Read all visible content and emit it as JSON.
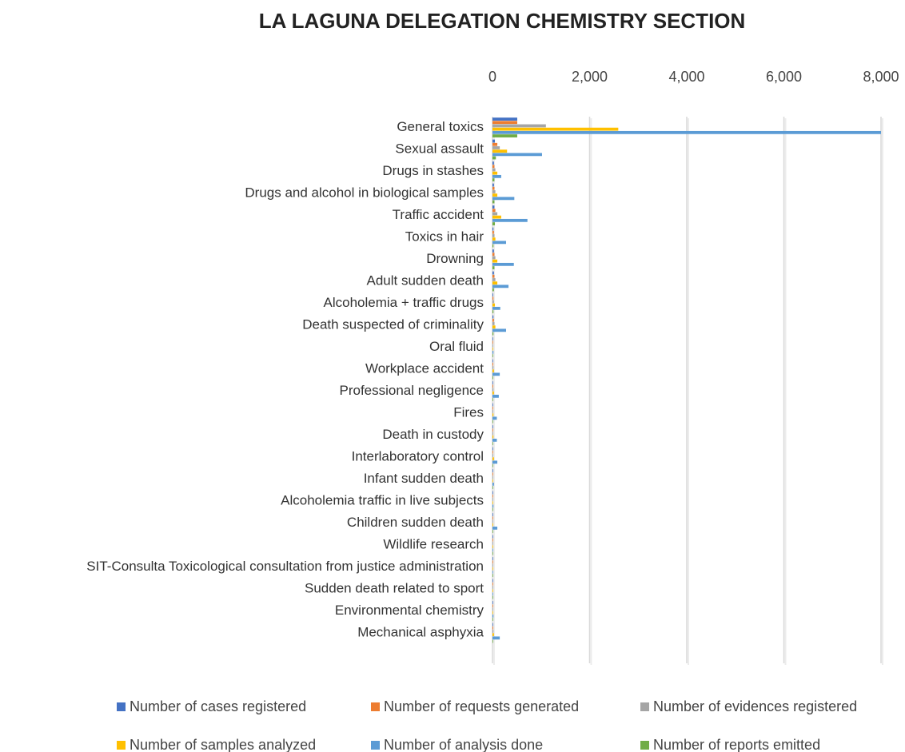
{
  "chart_data": {
    "type": "hbar",
    "title": "LA LAGUNA DELEGATION CHEMISTRY SECTION",
    "categories": [
      "General toxics",
      "Sexual assault",
      "Drugs in stashes",
      "Drugs and alcohol in biological samples",
      "Traffic accident",
      "Toxics in hair",
      "Drowning",
      "Adult sudden death",
      "Alcoholemia + traffic drugs",
      "Death suspected of criminality",
      "Oral fluid",
      "Workplace accident",
      "Professional negligence",
      "Fires",
      "Death in custody",
      "Interlaboratory control",
      "Infant sudden death",
      "Alcoholemia traffic in live subjects",
      "Children sudden death",
      "Wildlife research",
      "SIT-Consulta Toxicological consultation from justice administration",
      "Sudden death related to sport",
      "Environmental chemistry",
      "Mechanical asphyxia"
    ],
    "series": [
      {
        "name": "Number of cases registered",
        "color": "#4472c4",
        "values": [
          510,
          50,
          30,
          30,
          40,
          20,
          30,
          30,
          15,
          20,
          5,
          10,
          10,
          8,
          8,
          5,
          3,
          3,
          5,
          2,
          1,
          1,
          2,
          10
        ]
      },
      {
        "name": "Number of requests generated",
        "color": "#ed7d31",
        "values": [
          510,
          100,
          40,
          40,
          60,
          30,
          40,
          40,
          20,
          30,
          5,
          15,
          15,
          10,
          10,
          10,
          5,
          5,
          8,
          3,
          1,
          1,
          3,
          15
        ]
      },
      {
        "name": "Number of evidences registered",
        "color": "#a5a5a5",
        "values": [
          1100,
          150,
          60,
          60,
          100,
          40,
          60,
          60,
          30,
          40,
          10,
          20,
          20,
          15,
          15,
          15,
          8,
          8,
          10,
          5,
          2,
          2,
          4,
          20
        ]
      },
      {
        "name": "Number of samples analyzed",
        "color": "#ffc000",
        "values": [
          2590,
          300,
          100,
          100,
          180,
          60,
          100,
          100,
          50,
          60,
          10,
          30,
          30,
          20,
          20,
          30,
          10,
          10,
          15,
          5,
          2,
          3,
          5,
          30
        ]
      },
      {
        "name": "Number of analysis done",
        "color": "#5b9bd5",
        "values": [
          8000,
          1020,
          180,
          450,
          720,
          280,
          440,
          330,
          160,
          280,
          20,
          150,
          130,
          90,
          90,
          100,
          30,
          20,
          100,
          10,
          5,
          10,
          20,
          150
        ]
      },
      {
        "name": "Number of reports emitted",
        "color": "#70ad47",
        "values": [
          510,
          70,
          40,
          40,
          50,
          20,
          40,
          30,
          20,
          20,
          5,
          15,
          10,
          8,
          8,
          5,
          3,
          3,
          5,
          2,
          1,
          1,
          2,
          10
        ]
      }
    ],
    "xlim": [
      0,
      8000
    ],
    "xticks": [
      0,
      {
        "value": 2000,
        "label": "2,000"
      },
      {
        "value": 4000,
        "label": "4,000"
      },
      {
        "value": 6000,
        "label": "6,000"
      },
      {
        "value": 8000,
        "label": "8,000"
      }
    ],
    "grid": true,
    "legend": "bottom"
  }
}
